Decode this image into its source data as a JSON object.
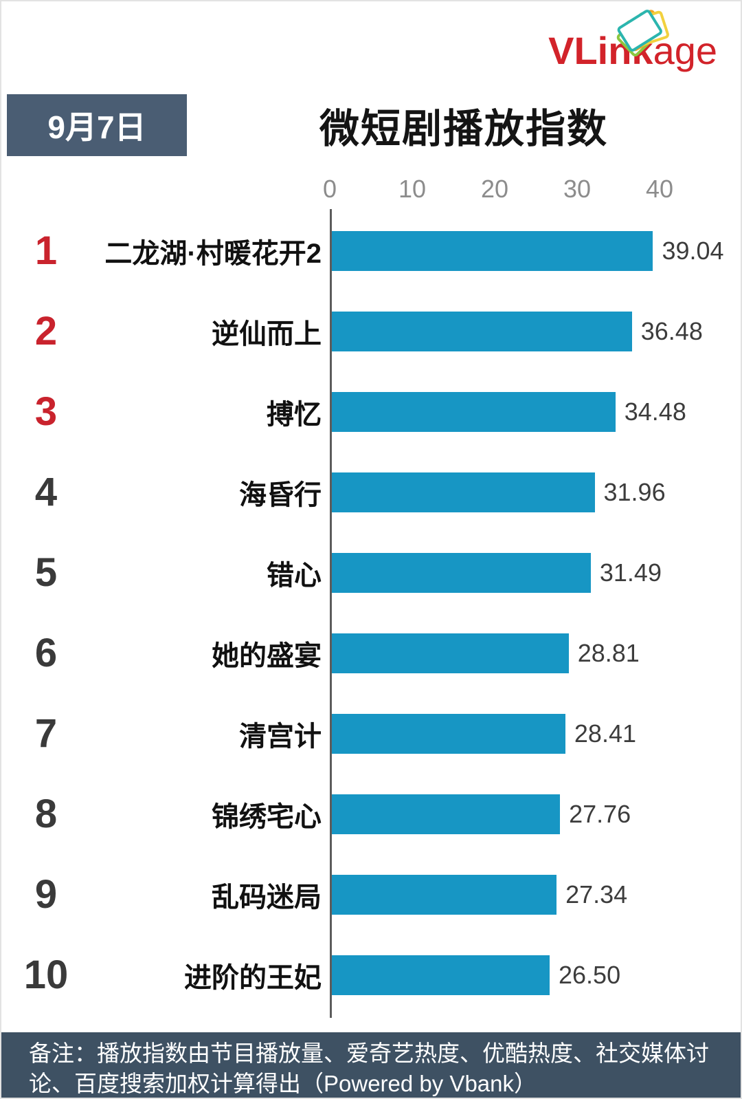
{
  "logo": {
    "text_bold": "VLink",
    "text_regular": "age",
    "color": "#d2232a",
    "card_colors": [
      "#8cc63f",
      "#f5a623",
      "#f2d13e",
      "#2bb5ae"
    ]
  },
  "header": {
    "date_badge": "9月7日",
    "date_badge_bg": "#4a5d73",
    "title": "微短剧播放指数"
  },
  "chart_data": {
    "type": "bar",
    "orientation": "horizontal",
    "title": "微短剧播放指数",
    "date": "9月7日",
    "categories": [
      "二龙湖·村暖花开2",
      "逆仙而上",
      "搏忆",
      "海昏行",
      "错心",
      "她的盛宴",
      "清宫计",
      "锦绣宅心",
      "乱码迷局",
      "进阶的王妃"
    ],
    "values": [
      39.04,
      36.48,
      34.48,
      31.96,
      31.49,
      28.81,
      28.41,
      27.76,
      27.34,
      26.5
    ],
    "ranks": [
      1,
      2,
      3,
      4,
      5,
      6,
      7,
      8,
      9,
      10
    ],
    "x_ticks": [
      0,
      10,
      20,
      30,
      40
    ],
    "xlim": [
      0,
      40
    ],
    "grid": false,
    "legend": false,
    "value_labels": true,
    "bar_color": "#1796c4",
    "rank_color_top3": "#c9232d",
    "rank_color_rest": "#3a3a3a"
  },
  "footer": {
    "note": "备注：播放指数由节目播放量、爱奇艺热度、优酷热度、社交媒体讨论、百度搜索加权计算得出（Powered by Vbank）",
    "bg": "#3e5163"
  }
}
